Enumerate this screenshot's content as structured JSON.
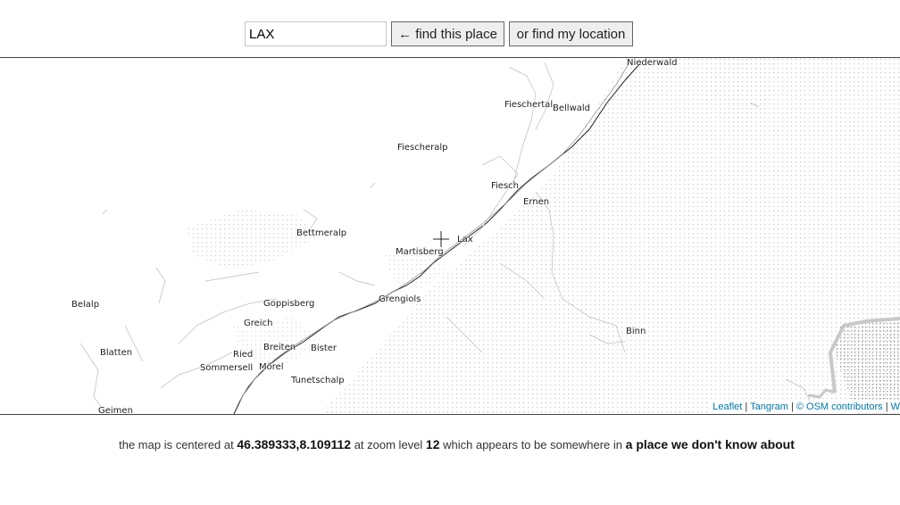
{
  "search": {
    "value": "LAX",
    "find_place_label": "← find this place",
    "find_location_label": "or find my location"
  },
  "map": {
    "places": [
      {
        "name": "Niederwald"
      },
      {
        "name": "Fieschertal"
      },
      {
        "name": "Bellwald"
      },
      {
        "name": "Fiescheralp"
      },
      {
        "name": "Fiesch"
      },
      {
        "name": "Ernen"
      },
      {
        "name": "Bettmeralp"
      },
      {
        "name": "Lax"
      },
      {
        "name": "Martisberg"
      },
      {
        "name": "Goppisberg"
      },
      {
        "name": "Grengiols"
      },
      {
        "name": "Belalp"
      },
      {
        "name": "Greich"
      },
      {
        "name": "Binn"
      },
      {
        "name": "Breiten"
      },
      {
        "name": "Bister"
      },
      {
        "name": "Blatten"
      },
      {
        "name": "Ried"
      },
      {
        "name": "Mörel"
      },
      {
        "name": "Sommersell"
      },
      {
        "name": "Tunetschalp"
      },
      {
        "name": "Geimen"
      }
    ],
    "attribution": {
      "leaflet": "Leaflet",
      "tangram": "Tangram",
      "osm": "© OSM contributors",
      "extra": "W"
    }
  },
  "status": {
    "prefix": "the map is centered at",
    "coords": "46.389333,8.109112",
    "zoom_prefix": "at zoom level",
    "zoom": "12",
    "place_prefix": "which appears to be somewhere in",
    "place": "a place we don't know about"
  }
}
